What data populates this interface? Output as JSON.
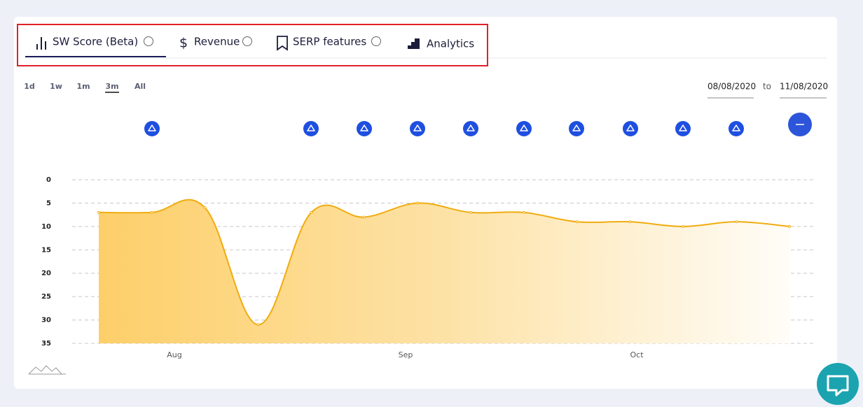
{
  "tabs": [
    "SW Score (Beta)",
    "Revenue",
    "SERP features",
    "Analytics"
  ],
  "ranges": [
    "1d",
    "1w",
    "1m",
    "3m",
    "All"
  ],
  "selected_range": "3m",
  "date_from": "08/08/2020",
  "date_separator": "to",
  "date_to": "11/08/2020",
  "chart_data": {
    "type": "area",
    "categories": [
      null,
      null,
      null,
      null,
      null,
      null,
      null,
      null,
      null,
      null,
      null,
      null,
      null,
      null
    ],
    "xtick_labels": [
      "Aug",
      "Sep",
      "Oct"
    ],
    "series": [
      {
        "name": null,
        "color": "#f0ac0f",
        "values": [
          7,
          7,
          6,
          31,
          7,
          8,
          5,
          7,
          7,
          9,
          9,
          10,
          9,
          10
        ]
      }
    ],
    "ylim": [
      0,
      35
    ],
    "yticks": [
      0,
      5,
      10,
      15,
      20,
      25,
      30,
      35
    ],
    "y_inverted": true,
    "grid": true
  }
}
